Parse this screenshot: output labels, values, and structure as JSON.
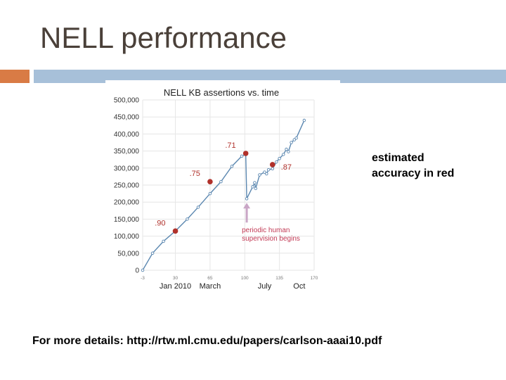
{
  "slide": {
    "title": "NELL performance",
    "side_note": "estimated accuracy in red",
    "footer": "For more details: http://rtw.ml.cmu.edu/papers/carlson-aaai10.pdf"
  },
  "colors": {
    "title": "#4a4039",
    "accent_orange": "#d97b45",
    "accent_blue": "#a7c0d9",
    "line": "#5b87b0",
    "accuracy_marker": "#b0312b",
    "annotation_arrow": "#c9a6c6",
    "annotation_text": "#c23a55",
    "grid": "#e6e6e6"
  },
  "chart_data": {
    "type": "line",
    "title": "NELL KB assertions vs. time",
    "xlabel": "",
    "ylabel": "",
    "xlim": [
      -3,
      170
    ],
    "ylim": [
      0,
      500000
    ],
    "grid": true,
    "x_ticks": [
      -3,
      30,
      65,
      100,
      135,
      170
    ],
    "x_category_labels": [
      {
        "x": 30,
        "label": "Jan 2010"
      },
      {
        "x": 65,
        "label": "March"
      },
      {
        "x": 120,
        "label": "July"
      },
      {
        "x": 155,
        "label": "Oct"
      }
    ],
    "y_tick_labels": [
      "0",
      "50,000",
      "100,000",
      "150,000",
      "200,000",
      "250,000",
      "300,000",
      "350,000",
      "400,000",
      "450,000",
      "500,000"
    ],
    "series": [
      {
        "values": [
          {
            "x": -3,
            "y": 0
          },
          {
            "x": 7,
            "y": 50000
          },
          {
            "x": 18,
            "y": 85000
          },
          {
            "x": 30,
            "y": 115000
          },
          {
            "x": 42,
            "y": 150000
          },
          {
            "x": 53,
            "y": 185000
          },
          {
            "x": 65,
            "y": 225000
          },
          {
            "x": 76,
            "y": 260000
          },
          {
            "x": 87,
            "y": 305000
          },
          {
            "x": 97,
            "y": 335000
          },
          {
            "x": 101,
            "y": 340000
          },
          {
            "x": 102,
            "y": 210000
          },
          {
            "x": 108,
            "y": 245000
          },
          {
            "x": 110,
            "y": 257000
          },
          {
            "x": 111,
            "y": 240000
          },
          {
            "x": 115,
            "y": 280000
          },
          {
            "x": 120,
            "y": 288000
          },
          {
            "x": 122,
            "y": 283000
          },
          {
            "x": 124,
            "y": 295000
          },
          {
            "x": 128,
            "y": 298000
          },
          {
            "x": 132,
            "y": 318000
          },
          {
            "x": 135,
            "y": 328000
          },
          {
            "x": 139,
            "y": 340000
          },
          {
            "x": 142,
            "y": 355000
          },
          {
            "x": 144,
            "y": 348000
          },
          {
            "x": 147,
            "y": 375000
          },
          {
            "x": 150,
            "y": 383000
          },
          {
            "x": 152,
            "y": 388000
          },
          {
            "x": 160,
            "y": 440000
          }
        ]
      }
    ],
    "accuracy_markers": [
      {
        "x": 30,
        "y": 115000,
        "label": ".90"
      },
      {
        "x": 65,
        "y": 260000,
        "label": ".75"
      },
      {
        "x": 101,
        "y": 343000,
        "label": ".71"
      },
      {
        "x": 128,
        "y": 310000,
        "label": ".87"
      }
    ],
    "annotation": {
      "x": 102,
      "y_from": 140000,
      "y_to": 200000,
      "lines": [
        "periodic human",
        "supervision begins"
      ]
    }
  }
}
